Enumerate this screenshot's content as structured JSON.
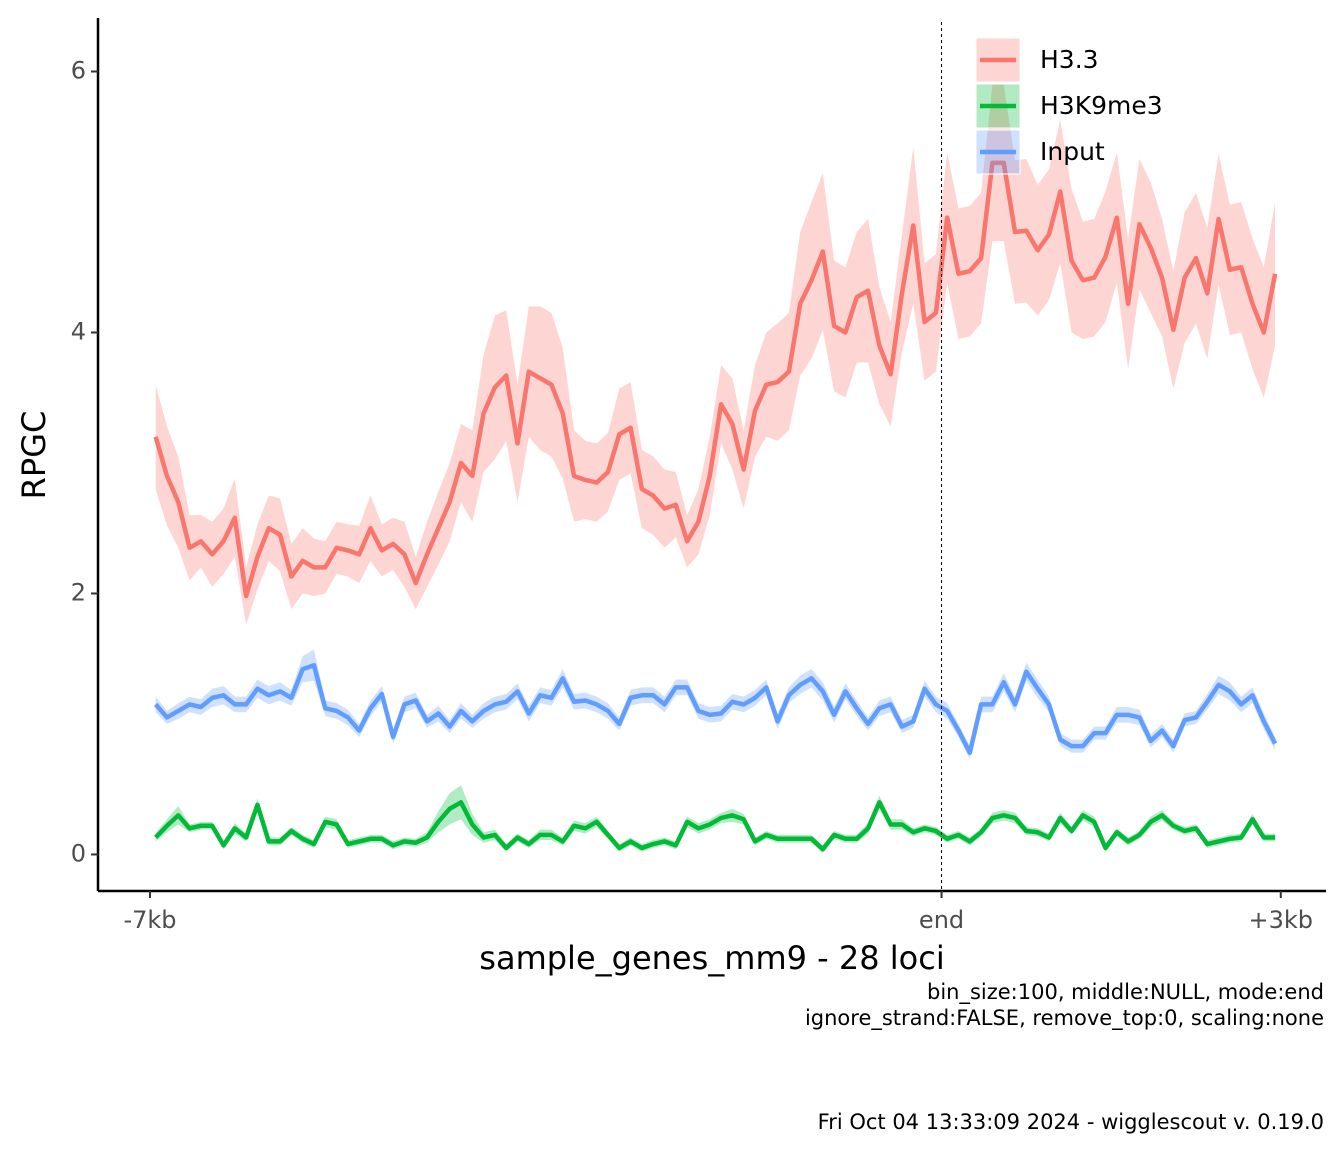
{
  "chart_data": {
    "type": "line",
    "ylabel": "RPGC",
    "xlabel": "sample_genes_mm9 - 28 loci",
    "captions": [
      "bin_size:100, middle:NULL, mode:end",
      "ignore_strand:FALSE, remove_top:0, scaling:none"
    ],
    "footer": "Fri Oct 04 13:33:09 2024 - wigglescout v. 0.19.0",
    "xlim": [
      -7460,
      3400
    ],
    "ylim": [
      -0.28,
      6.41
    ],
    "xticks": [
      {
        "value": -7000,
        "label": "-7kb"
      },
      {
        "value": 0,
        "label": "end"
      },
      {
        "value": 3000,
        "label": "+3kb"
      }
    ],
    "yticks": [
      0,
      2,
      4,
      6
    ],
    "vline": 0,
    "legend": "top-right",
    "x": [
      -6950,
      -6850,
      -6750,
      -6650,
      -6550,
      -6450,
      -6350,
      -6250,
      -6150,
      -6050,
      -5950,
      -5850,
      -5750,
      -5650,
      -5550,
      -5450,
      -5350,
      -5250,
      -5150,
      -5050,
      -4950,
      -4850,
      -4750,
      -4650,
      -4550,
      -4450,
      -4350,
      -4250,
      -4150,
      -4050,
      -3950,
      -3850,
      -3750,
      -3650,
      -3550,
      -3450,
      -3350,
      -3250,
      -3150,
      -3050,
      -2950,
      -2850,
      -2750,
      -2650,
      -2550,
      -2450,
      -2350,
      -2250,
      -2150,
      -2050,
      -1950,
      -1850,
      -1750,
      -1650,
      -1550,
      -1450,
      -1350,
      -1250,
      -1150,
      -1050,
      -950,
      -850,
      -750,
      -650,
      -550,
      -450,
      -350,
      -250,
      -150,
      -50,
      50,
      150,
      250,
      350,
      450,
      550,
      650,
      750,
      850,
      950,
      1050,
      1150,
      1250,
      1350,
      1450,
      1550,
      1650,
      1750,
      1850,
      1950,
      2050,
      2150,
      2250,
      2350,
      2450,
      2550,
      2650,
      2750,
      2850,
      2950
    ],
    "series": [
      {
        "name": "H3.3",
        "color": "#F8766D",
        "values": [
          3.2,
          2.9,
          2.7,
          2.35,
          2.4,
          2.3,
          2.4,
          2.58,
          1.98,
          2.28,
          2.5,
          2.45,
          2.13,
          2.25,
          2.2,
          2.2,
          2.35,
          2.33,
          2.3,
          2.5,
          2.33,
          2.38,
          2.3,
          2.08,
          2.3,
          2.5,
          2.7,
          3.0,
          2.9,
          3.38,
          3.58,
          3.67,
          3.15,
          3.7,
          3.65,
          3.6,
          3.38,
          2.9,
          2.87,
          2.85,
          2.93,
          3.22,
          3.27,
          2.8,
          2.75,
          2.65,
          2.68,
          2.4,
          2.55,
          2.9,
          3.45,
          3.3,
          2.95,
          3.4,
          3.6,
          3.62,
          3.7,
          4.22,
          4.4,
          4.62,
          4.05,
          4.0,
          4.27,
          4.32,
          3.9,
          3.68,
          4.3,
          4.82,
          4.08,
          4.15,
          4.88,
          4.45,
          4.47,
          4.57,
          5.3,
          5.3,
          4.77,
          4.78,
          4.63,
          4.75,
          5.08,
          4.55,
          4.4,
          4.42,
          4.58,
          4.88,
          4.22,
          4.83,
          4.65,
          4.42,
          4.02,
          4.42,
          4.57,
          4.3,
          4.87,
          4.48,
          4.5,
          4.22,
          4.0,
          4.45
        ],
        "errors": [
          0.4,
          0.38,
          0.35,
          0.25,
          0.2,
          0.25,
          0.25,
          0.3,
          0.22,
          0.25,
          0.25,
          0.28,
          0.25,
          0.25,
          0.22,
          0.2,
          0.2,
          0.2,
          0.22,
          0.25,
          0.2,
          0.2,
          0.25,
          0.2,
          0.25,
          0.28,
          0.3,
          0.3,
          0.35,
          0.45,
          0.55,
          0.5,
          0.45,
          0.5,
          0.55,
          0.55,
          0.5,
          0.35,
          0.3,
          0.3,
          0.3,
          0.35,
          0.35,
          0.3,
          0.3,
          0.3,
          0.25,
          0.2,
          0.25,
          0.3,
          0.3,
          0.35,
          0.3,
          0.35,
          0.4,
          0.45,
          0.45,
          0.55,
          0.6,
          0.6,
          0.5,
          0.5,
          0.5,
          0.55,
          0.45,
          0.4,
          0.45,
          0.6,
          0.45,
          0.45,
          0.5,
          0.5,
          0.5,
          0.5,
          0.6,
          0.6,
          0.55,
          0.55,
          0.5,
          0.5,
          0.55,
          0.55,
          0.45,
          0.45,
          0.5,
          0.5,
          0.5,
          0.5,
          0.5,
          0.45,
          0.45,
          0.5,
          0.5,
          0.5,
          0.5,
          0.5,
          0.5,
          0.5,
          0.5,
          0.55
        ]
      },
      {
        "name": "H3K9me3",
        "color": "#00BA38",
        "values": [
          0.13,
          0.22,
          0.3,
          0.2,
          0.22,
          0.22,
          0.07,
          0.2,
          0.13,
          0.38,
          0.1,
          0.1,
          0.18,
          0.12,
          0.08,
          0.25,
          0.23,
          0.08,
          0.1,
          0.12,
          0.12,
          0.07,
          0.1,
          0.09,
          0.13,
          0.25,
          0.35,
          0.4,
          0.23,
          0.13,
          0.15,
          0.05,
          0.13,
          0.08,
          0.15,
          0.15,
          0.1,
          0.22,
          0.2,
          0.25,
          0.15,
          0.05,
          0.1,
          0.05,
          0.08,
          0.1,
          0.07,
          0.25,
          0.2,
          0.23,
          0.28,
          0.3,
          0.27,
          0.1,
          0.15,
          0.12,
          0.12,
          0.12,
          0.12,
          0.04,
          0.15,
          0.12,
          0.12,
          0.2,
          0.4,
          0.23,
          0.23,
          0.17,
          0.2,
          0.18,
          0.12,
          0.15,
          0.1,
          0.17,
          0.28,
          0.3,
          0.28,
          0.18,
          0.17,
          0.13,
          0.28,
          0.18,
          0.3,
          0.25,
          0.05,
          0.17,
          0.1,
          0.15,
          0.25,
          0.3,
          0.22,
          0.18,
          0.2,
          0.08,
          0.1,
          0.12,
          0.13,
          0.27,
          0.13,
          0.13
        ],
        "errors": [
          0.03,
          0.05,
          0.07,
          0.03,
          0.03,
          0.03,
          0.03,
          0.04,
          0.03,
          0.05,
          0.03,
          0.03,
          0.03,
          0.03,
          0.03,
          0.04,
          0.04,
          0.03,
          0.03,
          0.03,
          0.03,
          0.03,
          0.03,
          0.03,
          0.04,
          0.08,
          0.12,
          0.13,
          0.08,
          0.04,
          0.04,
          0.03,
          0.03,
          0.03,
          0.04,
          0.04,
          0.03,
          0.04,
          0.04,
          0.04,
          0.03,
          0.03,
          0.03,
          0.03,
          0.03,
          0.03,
          0.03,
          0.04,
          0.04,
          0.04,
          0.04,
          0.05,
          0.04,
          0.03,
          0.03,
          0.03,
          0.03,
          0.03,
          0.03,
          0.03,
          0.03,
          0.03,
          0.03,
          0.04,
          0.05,
          0.04,
          0.04,
          0.03,
          0.03,
          0.03,
          0.03,
          0.03,
          0.03,
          0.03,
          0.04,
          0.04,
          0.04,
          0.03,
          0.03,
          0.03,
          0.04,
          0.03,
          0.04,
          0.04,
          0.03,
          0.03,
          0.03,
          0.03,
          0.04,
          0.04,
          0.03,
          0.03,
          0.03,
          0.03,
          0.03,
          0.03,
          0.03,
          0.04,
          0.03,
          0.03
        ]
      },
      {
        "name": "Input",
        "color": "#619CFF",
        "values": [
          1.15,
          1.05,
          1.1,
          1.15,
          1.13,
          1.2,
          1.22,
          1.15,
          1.15,
          1.27,
          1.22,
          1.25,
          1.2,
          1.42,
          1.45,
          1.12,
          1.1,
          1.05,
          0.95,
          1.12,
          1.23,
          0.9,
          1.15,
          1.18,
          1.02,
          1.08,
          0.98,
          1.1,
          1.02,
          1.1,
          1.15,
          1.17,
          1.25,
          1.08,
          1.22,
          1.2,
          1.35,
          1.17,
          1.18,
          1.15,
          1.1,
          1.0,
          1.2,
          1.22,
          1.22,
          1.15,
          1.28,
          1.28,
          1.1,
          1.07,
          1.08,
          1.17,
          1.15,
          1.2,
          1.28,
          1.02,
          1.22,
          1.3,
          1.35,
          1.25,
          1.07,
          1.25,
          1.12,
          1.0,
          1.12,
          1.15,
          0.98,
          1.02,
          1.27,
          1.15,
          1.1,
          0.95,
          0.78,
          1.15,
          1.15,
          1.32,
          1.15,
          1.4,
          1.27,
          1.15,
          0.88,
          0.83,
          0.83,
          0.93,
          0.93,
          1.07,
          1.07,
          1.05,
          0.87,
          0.95,
          0.83,
          1.03,
          1.05,
          1.17,
          1.3,
          1.25,
          1.15,
          1.22,
          1.02,
          0.85
        ],
        "errors": [
          0.06,
          0.05,
          0.06,
          0.06,
          0.06,
          0.07,
          0.07,
          0.06,
          0.06,
          0.07,
          0.07,
          0.07,
          0.06,
          0.1,
          0.12,
          0.06,
          0.06,
          0.06,
          0.05,
          0.06,
          0.06,
          0.05,
          0.06,
          0.06,
          0.05,
          0.06,
          0.05,
          0.06,
          0.05,
          0.06,
          0.06,
          0.06,
          0.06,
          0.06,
          0.06,
          0.06,
          0.07,
          0.06,
          0.06,
          0.06,
          0.06,
          0.05,
          0.06,
          0.06,
          0.06,
          0.06,
          0.06,
          0.06,
          0.06,
          0.06,
          0.06,
          0.06,
          0.06,
          0.06,
          0.06,
          0.06,
          0.06,
          0.07,
          0.07,
          0.07,
          0.06,
          0.06,
          0.06,
          0.05,
          0.06,
          0.06,
          0.05,
          0.05,
          0.06,
          0.06,
          0.06,
          0.05,
          0.05,
          0.06,
          0.06,
          0.07,
          0.06,
          0.07,
          0.07,
          0.06,
          0.05,
          0.05,
          0.05,
          0.05,
          0.05,
          0.06,
          0.06,
          0.06,
          0.05,
          0.05,
          0.05,
          0.05,
          0.05,
          0.06,
          0.07,
          0.07,
          0.06,
          0.06,
          0.06,
          0.05
        ]
      }
    ]
  }
}
